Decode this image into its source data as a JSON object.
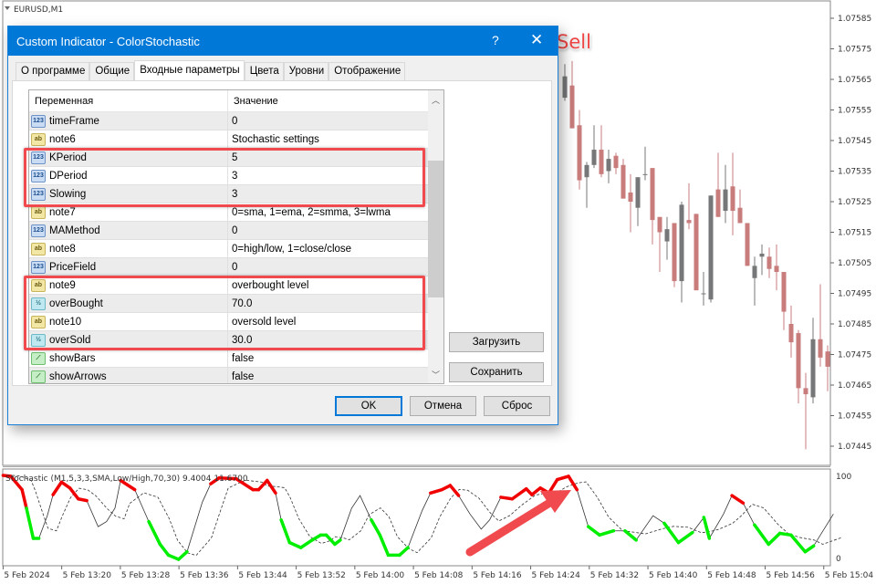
{
  "chart": {
    "symbol_label": "EURUSD,M1",
    "price_axis": [
      "1.07585",
      "1.07575",
      "1.07565",
      "1.07555",
      "1.07545",
      "1.07535",
      "1.07525",
      "1.07515",
      "1.07505",
      "1.07495",
      "1.07485",
      "1.07475",
      "1.07465",
      "1.07455",
      "1.07445"
    ],
    "time_axis": [
      "5 Feb 2024",
      "5 Feb 13:20",
      "5 Feb 13:28",
      "5 Feb 13:36",
      "5 Feb 13:44",
      "5 Feb 13:52",
      "5 Feb 14:00",
      "5 Feb 14:08",
      "5 Feb 14:16",
      "5 Feb 14:24",
      "5 Feb 14:32",
      "5 Feb 14:40",
      "5 Feb 14:48",
      "5 Feb 14:56",
      "5 Feb 15:04"
    ],
    "colors": {
      "bull": "#757779",
      "bear": "#c97c7c",
      "overbought": "#f00000",
      "oversold": "#00ee00",
      "annotation": "#f04a4f"
    },
    "candles_ohlc": [
      [
        1.07559,
        1.0757,
        1.07558,
        1.07566
      ],
      [
        1.07563,
        1.07571,
        1.07549,
        1.07549
      ],
      [
        1.0755,
        1.07555,
        1.07529,
        1.07532
      ],
      [
        1.07533,
        1.07538,
        1.07523,
        1.07537
      ],
      [
        1.07537,
        1.0755,
        1.07536,
        1.07542
      ],
      [
        1.07542,
        1.0755,
        1.07533,
        1.07534
      ],
      [
        1.07535,
        1.07542,
        1.07531,
        1.07539
      ],
      [
        1.0754,
        1.07541,
        1.07534,
        1.07536
      ],
      [
        1.07537,
        1.07539,
        1.07526,
        1.07526
      ],
      [
        1.07528,
        1.07534,
        1.07515,
        1.07525
      ],
      [
        1.07523,
        1.07533,
        1.07517,
        1.07533
      ],
      [
        1.07534,
        1.07543,
        1.07532,
        1.07534
      ],
      [
        1.07536,
        1.07536,
        1.07511,
        1.07519
      ],
      [
        1.0752,
        1.0752,
        1.07502,
        1.07515
      ],
      [
        1.07512,
        1.0752,
        1.07506,
        1.07516
      ],
      [
        1.07518,
        1.07518,
        1.07497,
        1.07499
      ],
      [
        1.07499,
        1.07525,
        1.07492,
        1.07524
      ],
      [
        1.07519,
        1.07531,
        1.07516,
        1.07518
      ],
      [
        1.07521,
        1.07521,
        1.07496,
        1.07496
      ],
      [
        1.07495,
        1.07502,
        1.07491,
        1.07495
      ],
      [
        1.07493,
        1.07527,
        1.07492,
        1.07527
      ],
      [
        1.07529,
        1.07541,
        1.0752,
        1.0752
      ],
      [
        1.07522,
        1.07537,
        1.07518,
        1.07529
      ],
      [
        1.0753,
        1.07541,
        1.07514,
        1.07522
      ],
      [
        1.07523,
        1.07529,
        1.07518,
        1.07518
      ],
      [
        1.07518,
        1.07518,
        1.07504,
        1.07504
      ],
      [
        1.075,
        1.07507,
        1.07491,
        1.07504
      ],
      [
        1.07507,
        1.07511,
        1.07501,
        1.07508
      ],
      [
        1.07507,
        1.0751,
        1.075,
        1.07503
      ],
      [
        1.07504,
        1.07511,
        1.07496,
        1.07502
      ],
      [
        1.07502,
        1.07502,
        1.07483,
        1.07489
      ],
      [
        1.07485,
        1.07491,
        1.07474,
        1.07479
      ],
      [
        1.07482,
        1.07483,
        1.07459,
        1.07464
      ],
      [
        1.07464,
        1.07469,
        1.07444,
        1.07462
      ],
      [
        1.07461,
        1.07487,
        1.07459,
        1.0748
      ],
      [
        1.0748,
        1.07498,
        1.07471,
        1.07474
      ],
      [
        1.07476,
        1.07478,
        1.07463,
        1.07471
      ]
    ],
    "indicator": {
      "label": "Stochastic (M1,5,3,3,SMA,Low/High,70,30) 9.4004 11.6700",
      "scale_max": "100",
      "scale_min": "0",
      "overbought": 70,
      "oversold": 30,
      "main": [
        [
          "13:12:00",
          100
        ],
        [
          "13:13:02",
          99
        ],
        [
          "13:14:35",
          83
        ],
        [
          "13:15:11",
          61
        ],
        [
          "13:16:07",
          25
        ],
        [
          "13:16:53",
          25
        ],
        [
          "13:18:02",
          52
        ],
        [
          "13:18:49",
          77
        ],
        [
          "13:19:58",
          92
        ],
        [
          "13:21:07",
          85
        ],
        [
          "13:22:16",
          72
        ],
        [
          "13:23:25",
          70
        ],
        [
          "13:24:58",
          39
        ],
        [
          "13:26:07",
          45
        ],
        [
          "13:27:16",
          61
        ],
        [
          "13:28:02",
          94
        ],
        [
          "13:29:58",
          83
        ],
        [
          "13:31:53",
          45
        ],
        [
          "13:33:25",
          18
        ],
        [
          "13:34:34",
          5
        ],
        [
          "13:35:57",
          0
        ],
        [
          "13:37:06",
          9
        ],
        [
          "13:39:11",
          68
        ],
        [
          "13:40:20",
          90
        ],
        [
          "13:41:29",
          97
        ],
        [
          "13:43:48",
          96
        ],
        [
          "13:46:06",
          83
        ],
        [
          "13:46:52",
          83
        ],
        [
          "13:48:02",
          94
        ],
        [
          "13:49:11",
          79
        ],
        [
          "13:49:57",
          47
        ],
        [
          "13:51:06",
          20
        ],
        [
          "13:52:38",
          14
        ],
        [
          "13:54:11",
          23
        ],
        [
          "13:55:20",
          29
        ],
        [
          "13:56:06",
          29
        ],
        [
          "13:57:16",
          18
        ],
        [
          "13:58:01",
          23
        ],
        [
          "13:59:34",
          61
        ],
        [
          "14:00:43",
          76
        ],
        [
          "14:02:15",
          47
        ],
        [
          "14:03:25",
          29
        ],
        [
          "14:04:34",
          5
        ],
        [
          "14:06:06",
          5
        ],
        [
          "14:07:15",
          14
        ],
        [
          "14:09:11",
          58
        ],
        [
          "14:10:20",
          79
        ],
        [
          "14:11:52",
          83
        ],
        [
          "14:13:01",
          88
        ],
        [
          "14:14:10",
          76
        ],
        [
          "14:15:43",
          54
        ],
        [
          "14:17:15",
          36
        ],
        [
          "14:18:24",
          47
        ],
        [
          "14:19:56",
          74
        ],
        [
          "14:21:29",
          72
        ],
        [
          "14:23:24",
          84
        ],
        [
          "14:24:10",
          77
        ],
        [
          "14:25:19",
          85
        ],
        [
          "14:26:29",
          79
        ],
        [
          "14:27:38",
          95
        ],
        [
          "14:29:10",
          99
        ],
        [
          "14:30:19",
          83
        ],
        [
          "14:31:52",
          39
        ],
        [
          "14:33:24",
          29
        ],
        [
          "14:35:19",
          34
        ],
        [
          "14:36:52",
          34
        ],
        [
          "14:38:24",
          23
        ],
        [
          "14:40:42",
          52
        ],
        [
          "14:42:14",
          43
        ],
        [
          "14:44:10",
          20
        ],
        [
          "14:46:05",
          32
        ],
        [
          "14:47:38",
          50
        ],
        [
          "14:48:23",
          25
        ],
        [
          "14:50:19",
          54
        ],
        [
          "14:51:28",
          76
        ],
        [
          "14:53:00",
          67
        ],
        [
          "14:54:33",
          41
        ],
        [
          "14:56:28",
          18
        ],
        [
          "14:58:00",
          31
        ],
        [
          "14:59:32",
          29
        ],
        [
          "15:01:28",
          9
        ],
        [
          "15:02:37",
          16
        ],
        [
          "15:05:19",
          54
        ]
      ]
    },
    "annotation": {
      "sell_label": "Sell"
    }
  },
  "dialog": {
    "title": "Custom Indicator - ColorStochastic",
    "help_icon": "?",
    "close_icon": "✕",
    "tabs": [
      {
        "label": "О программе",
        "active": false
      },
      {
        "label": "Общие",
        "active": false
      },
      {
        "label": "Входные параметры",
        "active": true
      },
      {
        "label": "Цвета",
        "active": false
      },
      {
        "label": "Уровни",
        "active": false
      },
      {
        "label": "Отображение",
        "active": false
      }
    ],
    "grid": {
      "col_variable": "Переменная",
      "col_value": "Значение",
      "rows": [
        {
          "icon": "num",
          "icon_text": "123",
          "name": "timeFrame",
          "value": "0"
        },
        {
          "icon": "str",
          "icon_text": "ab",
          "name": "note6",
          "value": "Stochastic settings"
        },
        {
          "icon": "num",
          "icon_text": "123",
          "name": "KPeriod",
          "value": "5"
        },
        {
          "icon": "num",
          "icon_text": "123",
          "name": "DPeriod",
          "value": "3"
        },
        {
          "icon": "num",
          "icon_text": "123",
          "name": "Slowing",
          "value": "3"
        },
        {
          "icon": "str",
          "icon_text": "ab",
          "name": "note7",
          "value": "0=sma, 1=ema, 2=smma, 3=lwma"
        },
        {
          "icon": "num",
          "icon_text": "123",
          "name": "MAMethod",
          "value": "0"
        },
        {
          "icon": "str",
          "icon_text": "ab",
          "name": "note8",
          "value": "0=high/low, 1=close/close"
        },
        {
          "icon": "num",
          "icon_text": "123",
          "name": "PriceField",
          "value": "0"
        },
        {
          "icon": "str",
          "icon_text": "ab",
          "name": "note9",
          "value": "overbought level"
        },
        {
          "icon": "dbl",
          "icon_text": "½",
          "name": "overBought",
          "value": "70.0"
        },
        {
          "icon": "str",
          "icon_text": "ab",
          "name": "note10",
          "value": "oversold level"
        },
        {
          "icon": "dbl",
          "icon_text": "½",
          "name": "overSold",
          "value": "30.0"
        },
        {
          "icon": "bool",
          "icon_text": "⟋",
          "name": "showBars",
          "value": "false"
        },
        {
          "icon": "bool",
          "icon_text": "⟋",
          "name": "showArrows",
          "value": "false"
        }
      ]
    },
    "load_button": "Загрузить",
    "save_button": "Сохранить",
    "ok_button": "OK",
    "cancel_button": "Отмена",
    "reset_button": "Сброс"
  }
}
